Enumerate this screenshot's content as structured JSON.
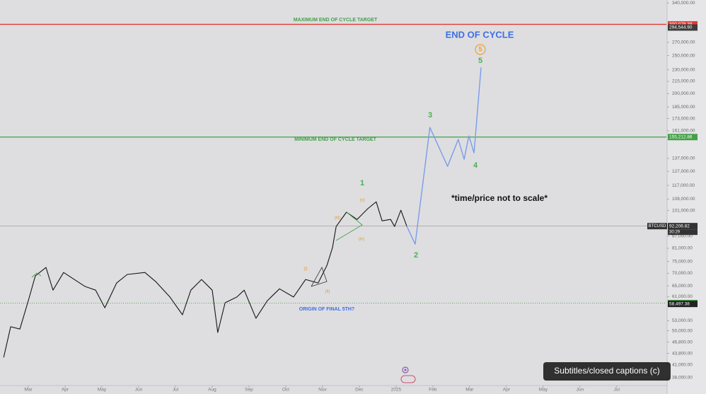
{
  "chart_data": {
    "type": "line",
    "log_scale": true,
    "grid": false,
    "xlim": [
      1.23,
      19.35
    ],
    "xticks": [
      {
        "value": 2,
        "label": "Mar"
      },
      {
        "value": 3,
        "label": "Apr"
      },
      {
        "value": 4,
        "label": "May"
      },
      {
        "value": 5,
        "label": "Jun"
      },
      {
        "value": 6,
        "label": "Jul"
      },
      {
        "value": 7,
        "label": "Aug"
      },
      {
        "value": 8,
        "label": "Sep"
      },
      {
        "value": 9,
        "label": "Oct"
      },
      {
        "value": 10,
        "label": "Nov"
      },
      {
        "value": 11,
        "label": "Dec"
      },
      {
        "value": 12,
        "label": "2025"
      },
      {
        "value": 13,
        "label": "Feb"
      },
      {
        "value": 14,
        "label": "Mar"
      },
      {
        "value": 15,
        "label": "Apr"
      },
      {
        "value": 16,
        "label": "May"
      },
      {
        "value": 17,
        "label": "Jun"
      },
      {
        "value": 18,
        "label": "Jul"
      }
    ],
    "ylim": [
      36300,
      346000
    ],
    "yticks": [
      {
        "value": 340000,
        "label": "340,000.00"
      },
      {
        "value": 270000,
        "label": "270,000.00"
      },
      {
        "value": 250000,
        "label": "250,000.00"
      },
      {
        "value": 230000,
        "label": "230,000.00"
      },
      {
        "value": 215000,
        "label": "215,000.00"
      },
      {
        "value": 200000,
        "label": "200,000.00"
      },
      {
        "value": 185000,
        "label": "185,000.00"
      },
      {
        "value": 173000,
        "label": "173,000.00"
      },
      {
        "value": 161000,
        "label": "161,000.00"
      },
      {
        "value": 137000,
        "label": "137,000.00"
      },
      {
        "value": 127000,
        "label": "127,000.00"
      },
      {
        "value": 117000,
        "label": "117,000.00"
      },
      {
        "value": 108000,
        "label": "108,000.00"
      },
      {
        "value": 101000,
        "label": "101,000.00"
      },
      {
        "value": 87000,
        "label": "87,000.00"
      },
      {
        "value": 81000,
        "label": "81,000.00"
      },
      {
        "value": 75000,
        "label": "75,000.00"
      },
      {
        "value": 70000,
        "label": "70,000.00"
      },
      {
        "value": 65000,
        "label": "65,000.00"
      },
      {
        "value": 61000,
        "label": "61,000.00"
      },
      {
        "value": 53000,
        "label": "53,000.00"
      },
      {
        "value": 50000,
        "label": "50,000.00"
      },
      {
        "value": 46800,
        "label": "46,800.00"
      },
      {
        "value": 43800,
        "label": "43,800.00"
      },
      {
        "value": 41000,
        "label": "41,000.00"
      },
      {
        "value": 38000,
        "label": "38,000.00"
      }
    ],
    "series": [
      {
        "name": "BTCUSD",
        "color": "#151515",
        "x": [
          1.33,
          1.52,
          1.77,
          2,
          2.19,
          2.48,
          2.67,
          2.96,
          3.25,
          3.54,
          3.83,
          4.08,
          4.4,
          4.69,
          5.17,
          5.46,
          5.85,
          6.19,
          6.42,
          6.71,
          7,
          7.15,
          7.35,
          7.67,
          7.87,
          8.19,
          8.5,
          8.83,
          9.21,
          9.54,
          9.88,
          10.12,
          10.27,
          10.37,
          10.65,
          10.94,
          11.23,
          11.46,
          11.62,
          11.85,
          11.96,
          12.13,
          12.29
        ],
        "values": [
          42800,
          51200,
          50500,
          59600,
          68900,
          72400,
          63400,
          70300,
          67500,
          64800,
          63400,
          57200,
          66100,
          69500,
          70300,
          66700,
          60900,
          54900,
          63400,
          67500,
          63400,
          49500,
          58900,
          60900,
          63400,
          53800,
          59600,
          63900,
          60900,
          67500,
          66100,
          73300,
          81300,
          92000,
          100000,
          95900,
          102100,
          106300,
          95100,
          95900,
          92000,
          101200,
          92207
        ]
      },
      {
        "color": "#7b9ce8",
        "x": [
          12.29,
          12.52,
          12.92,
          13.4,
          13.69,
          13.85,
          13.98,
          14.12,
          14.31
        ],
        "values": [
          92207,
          83000,
          164200,
          130800,
          153100,
          136300,
          156300,
          141500,
          233300
        ]
      }
    ],
    "levels": [
      {
        "value": 300078.39,
        "label": "300,078.39",
        "color": "#e53935",
        "style": "solid"
      },
      {
        "value": 294544.9,
        "label": "294,544.90",
        "color": "#3c3c3c",
        "style": "none"
      },
      {
        "value": 155212.86,
        "label": "155,212.86",
        "color": "#43a047",
        "style": "solid"
      },
      {
        "value": 92206.82,
        "label": "92,206.82",
        "color": "#333333",
        "style": "faint"
      },
      {
        "value": 58799.22,
        "label": "58,799.22",
        "color": "#43a047",
        "style": "dotted"
      },
      {
        "value": 58497.38,
        "label": "58,497.38",
        "color": "#222222",
        "style": "none"
      }
    ],
    "countdown": "30:29",
    "annotations": [
      "END OF CYCLE",
      "*time/price not to scale*",
      "MAXIMUM END OF CYCLE TARGET",
      "MINIMUM END OF CYCLE TARGET",
      "ORIGIN OF FINAL 5TH?",
      "1",
      "2",
      "3",
      "4",
      "5",
      "5",
      "(i)",
      "(ii)",
      "(iii)",
      "(iv)",
      "(v)"
    ]
  },
  "player": {
    "caption": "Subtitles/closed captions (c)"
  }
}
